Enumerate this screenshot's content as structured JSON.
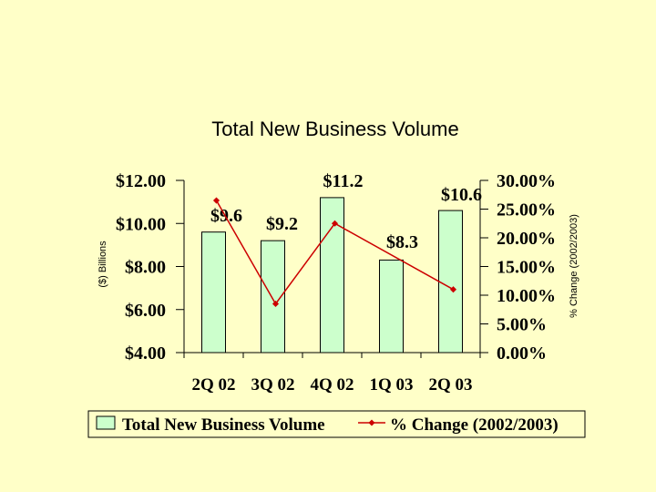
{
  "chart_data": {
    "type": "bar",
    "title": "Total New Business Volume",
    "categories": [
      "2Q 02",
      "3Q 02",
      "4Q 02",
      "1Q 03",
      "2Q 03"
    ],
    "series": [
      {
        "name": "Total New Business Volume",
        "type": "bar",
        "axis": "left",
        "values": [
          9.6,
          9.2,
          11.2,
          8.3,
          10.6
        ],
        "data_labels": [
          "$9.6",
          "$9.2",
          "$11.2",
          "$8.3",
          "$10.6"
        ],
        "color": "#ccffcc"
      },
      {
        "name": "% Change (2002/2003)",
        "type": "line",
        "axis": "right",
        "values": [
          26.5,
          8.5,
          22.5,
          null,
          11.0
        ],
        "color": "#cc0000"
      }
    ],
    "ylabel": "($) Billions",
    "ylim": [
      4,
      12
    ],
    "yticks": [
      "$12.00",
      "$10.00",
      "$8.00",
      "$6.00",
      "$4.00"
    ],
    "y2label": "% Change (2002/2003)",
    "y2lim": [
      0,
      30
    ],
    "y2ticks": [
      "30.00%",
      "25.00%",
      "20.00%",
      "15.00%",
      "10.00%",
      "5.00%",
      "0.00%"
    ],
    "grid": false,
    "legend": "bottom"
  }
}
